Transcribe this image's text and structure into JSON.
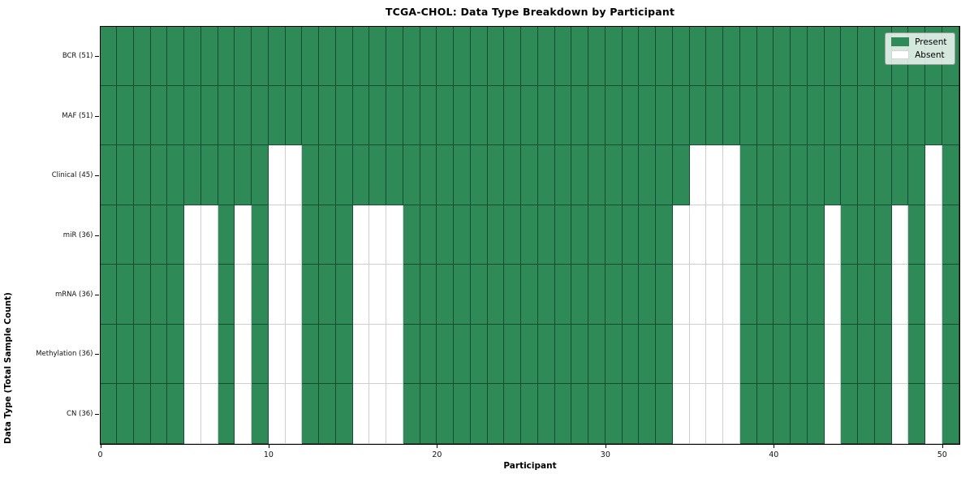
{
  "chart_data": {
    "type": "heatmap",
    "title": "TCGA-CHOL: Data Type Breakdown by Participant",
    "xlabel": "Participant",
    "ylabel": "Data Type (Total Sample Count)",
    "x_ticks": [
      0,
      10,
      20,
      30,
      40,
      50
    ],
    "xlim": [
      0,
      51
    ],
    "n_participants": 51,
    "grid": "cell-borders",
    "legend_position": "upper right",
    "rows": [
      {
        "label": "BCR (51)",
        "data_type": "BCR",
        "present_count": 51,
        "absent_participants": []
      },
      {
        "label": "MAF (51)",
        "data_type": "MAF",
        "present_count": 51,
        "absent_participants": []
      },
      {
        "label": "Clinical (45)",
        "data_type": "Clinical",
        "present_count": 45,
        "absent_participants": [
          10,
          11,
          35,
          36,
          37,
          49
        ]
      },
      {
        "label": "miR (36)",
        "data_type": "miR",
        "present_count": 36,
        "absent_participants": [
          5,
          6,
          8,
          10,
          11,
          15,
          16,
          17,
          34,
          35,
          36,
          37,
          43,
          47,
          49
        ]
      },
      {
        "label": "mRNA (36)",
        "data_type": "mRNA",
        "present_count": 36,
        "absent_participants": [
          5,
          6,
          8,
          10,
          11,
          15,
          16,
          17,
          34,
          35,
          36,
          37,
          43,
          47,
          49
        ]
      },
      {
        "label": "Methylation (36)",
        "data_type": "Methylation",
        "present_count": 36,
        "absent_participants": [
          5,
          6,
          8,
          10,
          11,
          15,
          16,
          17,
          34,
          35,
          36,
          37,
          43,
          47,
          49
        ]
      },
      {
        "label": "CN (36)",
        "data_type": "CN",
        "present_count": 36,
        "absent_participants": [
          5,
          6,
          8,
          10,
          11,
          15,
          16,
          17,
          34,
          35,
          36,
          37,
          43,
          47,
          49
        ]
      }
    ],
    "legend": {
      "items": [
        {
          "label": "Present",
          "state": "present",
          "color": "#2E8B57"
        },
        {
          "label": "Absent",
          "state": "absent",
          "color": "#FFFFFF"
        }
      ]
    },
    "colors": {
      "present": "#2E8B57",
      "absent": "#FFFFFF"
    }
  }
}
